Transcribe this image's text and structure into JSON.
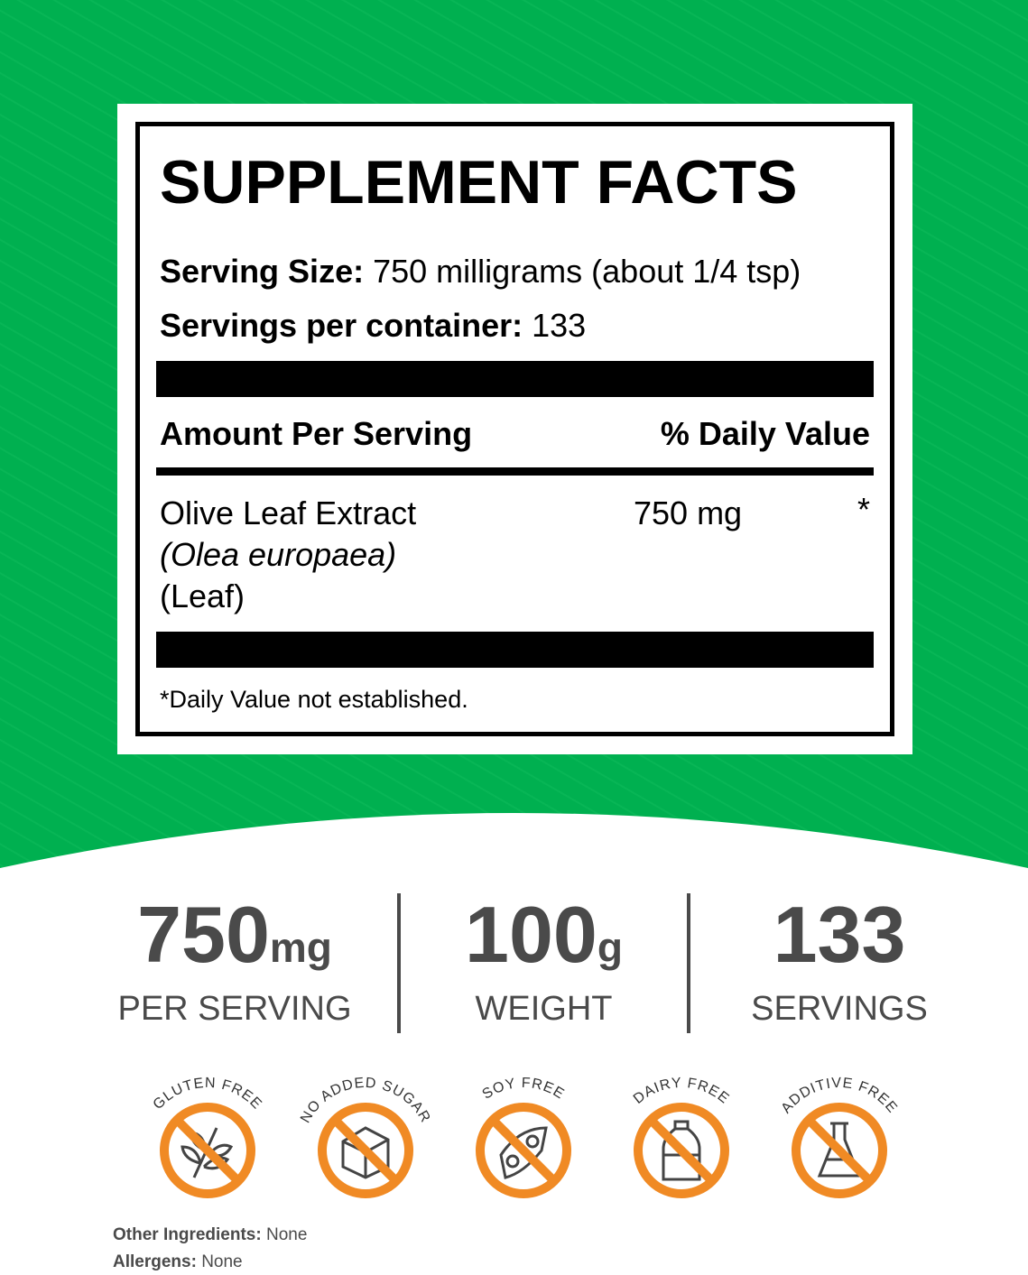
{
  "colors": {
    "background_green": "#00b050",
    "badge_orange": "#f08a24",
    "text_gray": "#4a4a4a"
  },
  "facts": {
    "title": "SUPPLEMENT FACTS",
    "serving_size_label": "Serving Size:",
    "serving_size_value": "750 milligrams (about 1/4 tsp)",
    "servings_label": "Servings per container:",
    "servings_value": "133",
    "amount_header": "Amount Per Serving",
    "dv_header": "% Daily Value",
    "ingredient": {
      "name": "Olive Leaf Extract",
      "latin": "(Olea europaea)",
      "part": "(Leaf)",
      "amount": "750 mg",
      "dv": "*"
    },
    "footnote": "*Daily Value not established."
  },
  "stats": [
    {
      "value": "750",
      "unit": "mg",
      "label": "PER SERVING"
    },
    {
      "value": "100",
      "unit": "g",
      "label": "WEIGHT"
    },
    {
      "value": "133",
      "unit": "",
      "label": "SERVINGS"
    }
  ],
  "badges": [
    {
      "label": "GLUTEN FREE",
      "icon": "wheat-icon"
    },
    {
      "label": "NO ADDED SUGAR",
      "icon": "sugar-cube-icon"
    },
    {
      "label": "SOY FREE",
      "icon": "soybean-icon"
    },
    {
      "label": "DAIRY FREE",
      "icon": "milk-bottle-icon"
    },
    {
      "label": "ADDITIVE FREE",
      "icon": "flask-icon"
    }
  ],
  "other_ingredients": {
    "label": "Other Ingredients:",
    "value": "None"
  },
  "allergens": {
    "label": "Allergens:",
    "value": "None"
  }
}
